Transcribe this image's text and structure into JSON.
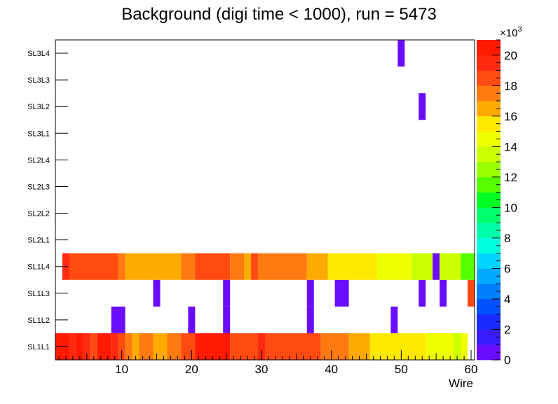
{
  "chart_data": {
    "type": "heatmap",
    "title": "Background (digi time < 1000), run = 5473",
    "xlabel": "Wire",
    "ylabel": "",
    "xlim": [
      0.5,
      60.5
    ],
    "x_ticks": [
      "10",
      "20",
      "30",
      "40",
      "50",
      "60"
    ],
    "y_categories": [
      "SL1L1",
      "SL1L2",
      "SL1L3",
      "SL1L4",
      "SL2L1",
      "SL2L2",
      "SL2L3",
      "SL2L4",
      "SL3L1",
      "SL3L2",
      "SL3L3",
      "SL3L4"
    ],
    "z_range": [
      0,
      21000
    ],
    "z_exponent_label": "×10",
    "z_exponent_power": "3",
    "z_ticks": [
      "0",
      "2",
      "4",
      "6",
      "8",
      "10",
      "12",
      "14",
      "16",
      "18",
      "20"
    ],
    "palette": [
      "#6a0dff",
      "#3a1dff",
      "#1a2aff",
      "#0050ff",
      "#0080ff",
      "#00aaff",
      "#00d4ff",
      "#00ffdf",
      "#00ffaa",
      "#00ff6e",
      "#00ff22",
      "#55ff00",
      "#99ff00",
      "#ccff00",
      "#eeff00",
      "#ffe800",
      "#ffaa00",
      "#ff7a10",
      "#ff4a10",
      "#ff2a10",
      "#ff1a00"
    ],
    "rows": [
      {
        "row": "SL1L1",
        "cells": [
          {
            "from": 1,
            "to": 2,
            "value": 20000
          },
          {
            "from": 3,
            "to": 3,
            "value": 19000
          },
          {
            "from": 4,
            "to": 4,
            "value": 20000
          },
          {
            "from": 5,
            "to": 5,
            "value": 19000
          },
          {
            "from": 6,
            "to": 6,
            "value": 18000
          },
          {
            "from": 7,
            "to": 8,
            "value": 20000
          },
          {
            "from": 9,
            "to": 9,
            "value": 19000
          },
          {
            "from": 10,
            "to": 10,
            "value": 18000
          },
          {
            "from": 11,
            "to": 11,
            "value": 17000
          },
          {
            "from": 12,
            "to": 12,
            "value": 16000
          },
          {
            "from": 13,
            "to": 14,
            "value": 17000
          },
          {
            "from": 15,
            "to": 16,
            "value": 16000
          },
          {
            "from": 17,
            "to": 18,
            "value": 17000
          },
          {
            "from": 19,
            "to": 20,
            "value": 18000
          },
          {
            "from": 21,
            "to": 25,
            "value": 20000
          },
          {
            "from": 26,
            "to": 29,
            "value": 18000
          },
          {
            "from": 30,
            "to": 30,
            "value": 19000
          },
          {
            "from": 31,
            "to": 38,
            "value": 18000
          },
          {
            "from": 39,
            "to": 42,
            "value": 17000
          },
          {
            "from": 43,
            "to": 45,
            "value": 16000
          },
          {
            "from": 46,
            "to": 46,
            "value": 15000
          },
          {
            "from": 47,
            "to": 53,
            "value": 15000
          },
          {
            "from": 54,
            "to": 57,
            "value": 14000
          },
          {
            "from": 58,
            "to": 58,
            "value": 13000
          },
          {
            "from": 59,
            "to": 59,
            "value": 14000
          }
        ]
      },
      {
        "row": "SL1L2",
        "cells": [
          {
            "from": 9,
            "to": 10,
            "value": 500
          },
          {
            "from": 20,
            "to": 20,
            "value": 500
          },
          {
            "from": 25,
            "to": 25,
            "value": 500
          },
          {
            "from": 37,
            "to": 37,
            "value": 500
          },
          {
            "from": 49,
            "to": 49,
            "value": 500
          }
        ]
      },
      {
        "row": "SL1L3",
        "cells": [
          {
            "from": 15,
            "to": 15,
            "value": 500
          },
          {
            "from": 25,
            "to": 25,
            "value": 500
          },
          {
            "from": 37,
            "to": 37,
            "value": 500
          },
          {
            "from": 41,
            "to": 42,
            "value": 500
          },
          {
            "from": 53,
            "to": 53,
            "value": 500
          },
          {
            "from": 56,
            "to": 56,
            "value": 500
          },
          {
            "from": 60,
            "to": 60,
            "value": 18000
          }
        ]
      },
      {
        "row": "SL1L4",
        "cells": [
          {
            "from": 2,
            "to": 2,
            "value": 19000
          },
          {
            "from": 3,
            "to": 9,
            "value": 18000
          },
          {
            "from": 10,
            "to": 10,
            "value": 17000
          },
          {
            "from": 11,
            "to": 18,
            "value": 16000
          },
          {
            "from": 19,
            "to": 20,
            "value": 17000
          },
          {
            "from": 21,
            "to": 25,
            "value": 18000
          },
          {
            "from": 26,
            "to": 27,
            "value": 17000
          },
          {
            "from": 28,
            "to": 28,
            "value": 16000
          },
          {
            "from": 29,
            "to": 29,
            "value": 18000
          },
          {
            "from": 30,
            "to": 36,
            "value": 17000
          },
          {
            "from": 37,
            "to": 39,
            "value": 16000
          },
          {
            "from": 40,
            "to": 46,
            "value": 15000
          },
          {
            "from": 47,
            "to": 51,
            "value": 14000
          },
          {
            "from": 52,
            "to": 54,
            "value": 13000
          },
          {
            "from": 55,
            "to": 55,
            "value": 500
          },
          {
            "from": 56,
            "to": 58,
            "value": 13000
          },
          {
            "from": 59,
            "to": 60,
            "value": 11500
          }
        ]
      },
      {
        "row": "SL3L2",
        "cells": [
          {
            "from": 53,
            "to": 53,
            "value": 500
          }
        ]
      },
      {
        "row": "SL3L4",
        "cells": [
          {
            "from": 50,
            "to": 50,
            "value": 500
          }
        ]
      }
    ]
  }
}
